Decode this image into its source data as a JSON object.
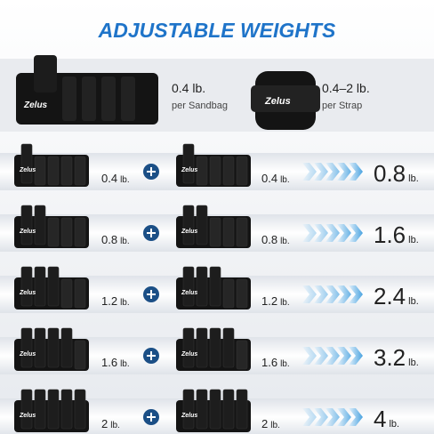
{
  "title": "ADJUSTABLE WEIGHTS",
  "brand": "Zelus",
  "unit": "lb.",
  "intro": [
    {
      "amount": "0.4 lb.",
      "caption": "per Sandbag"
    },
    {
      "amount": "0.4–2 lb.",
      "caption": "per Strap"
    }
  ],
  "rows": [
    {
      "sandbags": 1,
      "left": "0.4",
      "right": "0.4",
      "total": "0.8"
    },
    {
      "sandbags": 2,
      "left": "0.8",
      "right": "0.8",
      "total": "1.6"
    },
    {
      "sandbags": 3,
      "left": "1.2",
      "right": "1.2",
      "total": "2.4"
    },
    {
      "sandbags": 4,
      "left": "1.6",
      "right": "1.6",
      "total": "3.2"
    },
    {
      "sandbags": 5,
      "left": "2",
      "right": "2",
      "total": "4"
    }
  ]
}
